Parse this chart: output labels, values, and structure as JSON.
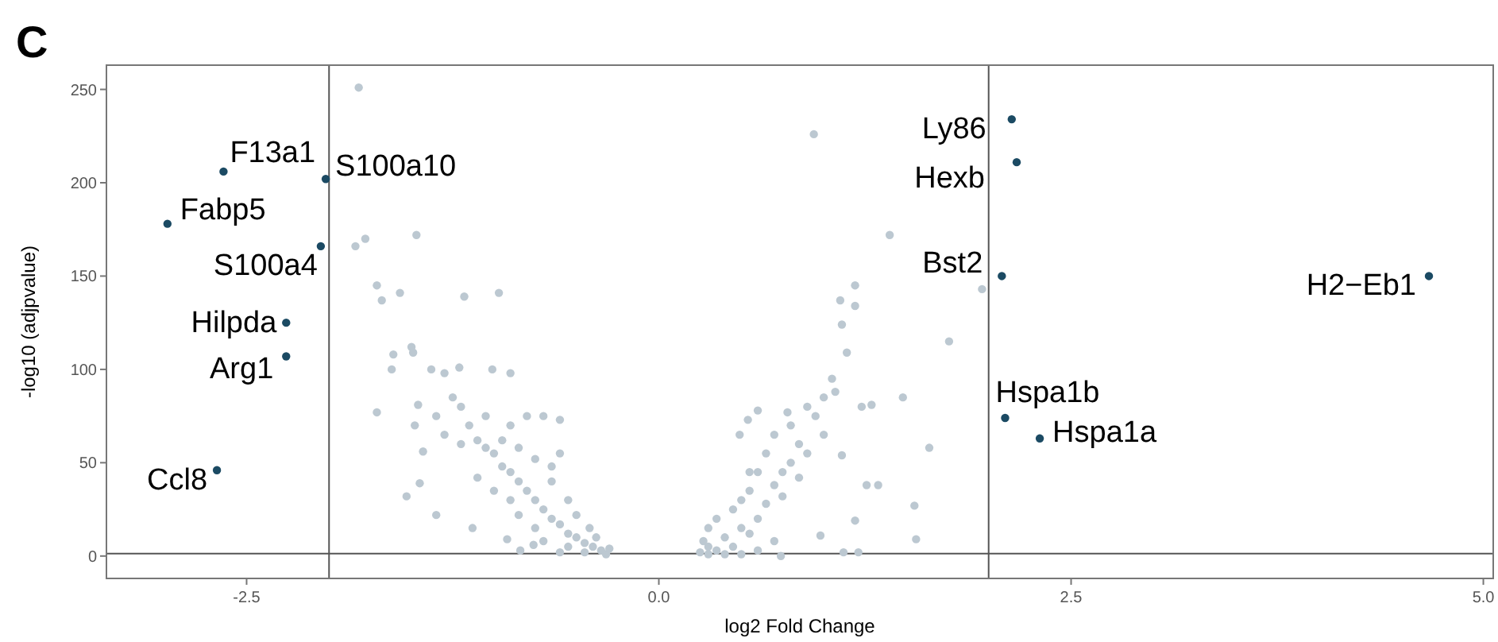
{
  "chart_data": {
    "type": "scatter",
    "title": "C",
    "xlabel": "log2 Fold Change",
    "ylabel": "-log10 (adjpvalue)",
    "xlim": [
      -3.35,
      5.06
    ],
    "ylim": [
      -12,
      263
    ],
    "xticks": [
      -2.5,
      {
        "value": 0,
        "label": "0.0"
      },
      2.5,
      {
        "value": 5,
        "label": "5.0"
      }
    ],
    "yticks": [
      0,
      50,
      100,
      150,
      200,
      250
    ],
    "grid": false,
    "marker": "circle",
    "ref_lines": [
      {
        "axis": "x",
        "value": -2,
        "color": "#555555"
      },
      {
        "axis": "x",
        "value": 2,
        "color": "#555555"
      },
      {
        "axis": "y",
        "value": 1.3,
        "color": "#555555"
      }
    ],
    "series": [
      {
        "color": "#bcc8d1",
        "x": [
          -1.82,
          -1.84,
          -1.78,
          -1.47,
          -1.71,
          -1.68,
          -1.57,
          -1.18,
          -0.97,
          -1.61,
          -1.62,
          -1.5,
          -1.49,
          -1.38,
          -1.3,
          -1.21,
          -1.01,
          -0.9,
          -1.71,
          -1.46,
          -1.48,
          -1.43,
          -1.45,
          -1.53,
          -1.35,
          -1.13,
          -0.92,
          -0.84,
          -0.76,
          -1.25,
          -1.2,
          -1.15,
          -1.1,
          -1.05,
          -1.0,
          -0.95,
          -0.9,
          -0.85,
          -0.8,
          -0.75,
          -0.7,
          -0.65,
          -0.6,
          -0.55,
          -0.5,
          -0.45,
          -0.4,
          -0.35,
          -0.32,
          -0.3,
          -0.45,
          -0.55,
          -0.6,
          -0.7,
          -0.75,
          -0.85,
          -0.9,
          -1.0,
          -1.1,
          -0.95,
          -0.85,
          -0.75,
          -0.65,
          -0.55,
          -0.5,
          -0.42,
          -0.38,
          -0.8,
          -0.7,
          -0.6,
          -1.05,
          -0.9,
          -0.65,
          -0.6,
          -1.2,
          -1.3,
          -1.35,
          0.25,
          0.27,
          0.3,
          0.3,
          0.35,
          0.35,
          0.4,
          0.45,
          0.45,
          0.5,
          0.5,
          0.55,
          0.55,
          0.6,
          0.6,
          0.65,
          0.65,
          0.7,
          0.7,
          0.75,
          0.75,
          0.8,
          0.8,
          0.85,
          0.85,
          0.9,
          0.9,
          0.95,
          1.0,
          1.0,
          1.05,
          0.3,
          0.4,
          0.5,
          0.6,
          0.7,
          0.55,
          0.94,
          1.4,
          1.96,
          1.19,
          1.1,
          1.19,
          1.11,
          1.14,
          1.76,
          1.07,
          1.48,
          1.23,
          1.29,
          1.64,
          1.11,
          1.55,
          1.56,
          1.21,
          1.12,
          1.33,
          1.26,
          1.19,
          0.98,
          0.74,
          0.6,
          0.54,
          0.49,
          0.78
        ],
        "values": [
          251,
          166,
          170,
          172,
          145,
          137,
          141,
          139,
          141,
          108,
          100,
          112,
          109,
          100,
          98,
          101,
          100,
          98,
          77,
          81,
          70,
          56,
          39,
          32,
          22,
          15,
          9,
          3,
          6,
          85,
          80,
          70,
          62,
          58,
          55,
          48,
          45,
          40,
          35,
          30,
          25,
          20,
          17,
          12,
          10,
          7,
          5,
          3,
          1,
          4,
          2,
          5,
          2,
          8,
          15,
          22,
          30,
          35,
          42,
          62,
          58,
          52,
          40,
          30,
          22,
          15,
          10,
          75,
          75,
          73,
          75,
          70,
          48,
          55,
          60,
          65,
          75,
          2,
          8,
          15,
          5,
          20,
          3,
          10,
          25,
          5,
          15,
          30,
          12,
          35,
          20,
          45,
          28,
          55,
          38,
          65,
          32,
          45,
          50,
          70,
          42,
          60,
          55,
          80,
          75,
          65,
          85,
          95,
          1,
          1,
          1,
          3,
          8,
          45,
          226,
          172,
          143,
          145,
          137,
          134,
          124,
          109,
          115,
          88,
          85,
          80,
          81,
          58,
          54,
          27,
          9,
          2,
          2,
          38,
          38,
          19,
          11,
          0,
          78,
          73,
          65,
          77
        ]
      },
      {
        "color": "#1b4a63",
        "x": [
          -2.64,
          -2.02,
          -2.98,
          -2.05,
          -2.26,
          -2.26,
          -2.68,
          2.14,
          2.17,
          2.08,
          4.67,
          2.1,
          2.31
        ],
        "values": [
          206,
          202,
          178,
          166,
          125,
          107,
          46,
          234,
          211,
          150,
          150,
          74,
          63
        ]
      }
    ],
    "annotations": [
      {
        "text": "F13a1",
        "x": -2.64,
        "y": 206
      },
      {
        "text": "S100a10",
        "x": -2.02,
        "y": 202
      },
      {
        "text": "Fabp5",
        "x": -2.98,
        "y": 178
      },
      {
        "text": "S100a4",
        "x": -2.05,
        "y": 166
      },
      {
        "text": "Hilpda",
        "x": -2.26,
        "y": 125
      },
      {
        "text": "Arg1",
        "x": -2.26,
        "y": 107
      },
      {
        "text": "Ccl8",
        "x": -2.68,
        "y": 46
      },
      {
        "text": "Ly86",
        "x": 2.14,
        "y": 234
      },
      {
        "text": "Hexb",
        "x": 2.17,
        "y": 211
      },
      {
        "text": "Bst2",
        "x": 2.08,
        "y": 150
      },
      {
        "text": "H2−Eb1",
        "x": 4.67,
        "y": 150
      },
      {
        "text": "Hspa1b",
        "x": 2.1,
        "y": 74
      },
      {
        "text": "Hspa1a",
        "x": 2.31,
        "y": 63
      }
    ]
  }
}
